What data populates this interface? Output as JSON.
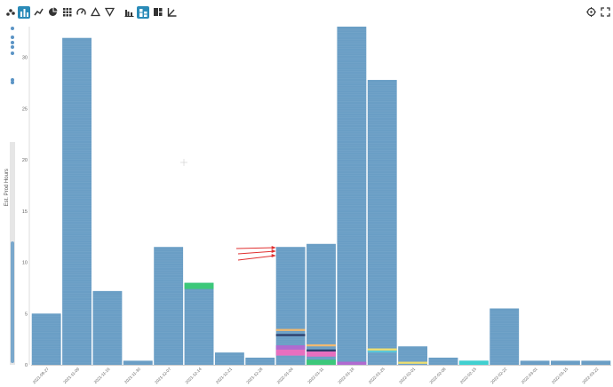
{
  "toolbar": {
    "chart_types": [
      {
        "icon": "scatter-icon",
        "active": false
      },
      {
        "icon": "bar-chart-icon",
        "active": true
      },
      {
        "icon": "line-chart-icon",
        "active": false
      },
      {
        "icon": "pie-chart-icon",
        "active": false
      },
      {
        "icon": "grid-icon",
        "active": false
      },
      {
        "icon": "gauge-icon",
        "active": false
      },
      {
        "icon": "triangle-up-icon",
        "active": false
      },
      {
        "icon": "triangle-down-icon",
        "active": false
      }
    ],
    "display_modes": [
      {
        "icon": "grouped-bars-icon",
        "active": false
      },
      {
        "icon": "stacked-bars-icon",
        "active": true
      },
      {
        "icon": "treemap-icon",
        "active": false
      },
      {
        "icon": "corner-axis-icon",
        "active": false
      }
    ],
    "right": [
      {
        "icon": "target-icon"
      },
      {
        "icon": "expand-icon"
      }
    ]
  },
  "colors": {
    "bar": "#6a9ec5",
    "bar_line": "#8bb6d6",
    "axis_text": "#666666",
    "annotation": "#e03030",
    "toolbar_active": "#2a8bb8"
  },
  "chart_data": {
    "type": "bar",
    "ylabel": "Est. Prod Hours",
    "ylim": [
      0,
      33
    ],
    "yticks": [
      0,
      5,
      10,
      15,
      20,
      25,
      30
    ],
    "categories": [
      "2021-09-27",
      "2021-11-09",
      "2021-11-16",
      "2021-11-30",
      "2021-12-07",
      "2021-12-14",
      "2021-12-21",
      "2021-12-28",
      "2022-01-04",
      "2022-01-11",
      "2022-01-18",
      "2022-01-25",
      "2022-02-01",
      "2022-02-08",
      "2022-02-15",
      "2022-02-22",
      "2022-03-01",
      "2022-03-15",
      "2022-03-22"
    ],
    "values": [
      5.0,
      31.9,
      7.2,
      0.4,
      11.5,
      8.0,
      1.2,
      0.7,
      11.5,
      11.8,
      33.0,
      27.8,
      1.8,
      0.7,
      0.4,
      5.5,
      0.4,
      0.4,
      0.4
    ],
    "highlights": [
      {
        "index": 5,
        "segments": [
          {
            "from": 7.4,
            "to": 8.0,
            "color": "#3cc87a"
          }
        ]
      },
      {
        "index": 8,
        "segments": [
          {
            "from": 0.9,
            "to": 1.5,
            "color": "#e76fbf"
          },
          {
            "from": 1.5,
            "to": 1.9,
            "color": "#b06ad0"
          },
          {
            "from": 2.8,
            "to": 3.0,
            "color": "#2c3e6b"
          },
          {
            "from": 3.3,
            "to": 3.5,
            "color": "#f0b870"
          }
        ]
      },
      {
        "index": 9,
        "segments": [
          {
            "from": 0.0,
            "to": 0.5,
            "color": "#3cc87a"
          },
          {
            "from": 0.8,
            "to": 1.3,
            "color": "#e76fbf"
          },
          {
            "from": 1.3,
            "to": 1.5,
            "color": "#2c3e6b"
          },
          {
            "from": 1.8,
            "to": 2.0,
            "color": "#f0b870"
          }
        ]
      },
      {
        "index": 10,
        "segments": [
          {
            "from": 0.0,
            "to": 0.3,
            "color": "#b06ad0"
          }
        ]
      },
      {
        "index": 11,
        "segments": [
          {
            "from": 1.2,
            "to": 1.4,
            "color": "#5bc8d8"
          },
          {
            "from": 1.4,
            "to": 1.6,
            "color": "#f0e070"
          }
        ]
      },
      {
        "index": 12,
        "segments": [
          {
            "from": 0.1,
            "to": 0.3,
            "color": "#f0e070"
          }
        ]
      },
      {
        "index": 14,
        "segments": [
          {
            "from": 0.0,
            "to": 0.4,
            "color": "#40d0d0"
          }
        ]
      }
    ],
    "grid": false,
    "legend": "none"
  }
}
